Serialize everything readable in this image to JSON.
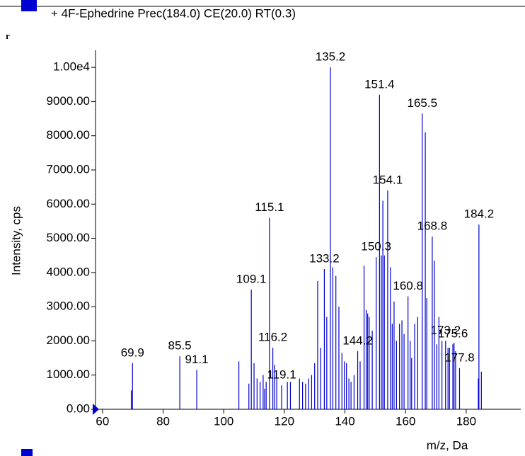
{
  "chart_data": {
    "type": "stick",
    "corner_text": "r",
    "series": [
      {
        "name": "+ 4F-Ephedrine Prec(184.0) CE(20.0) RT(0.3)",
        "color": "#0000d0",
        "x": [
          69.5,
          69.9,
          85.5,
          91.1,
          105.0,
          108.3,
          109.1,
          110.0,
          111.0,
          112.0,
          113.0,
          113.5,
          114.0,
          115.1,
          116.2,
          116.8,
          117.5,
          119.1,
          121.0,
          122.0,
          125.0,
          126.0,
          127.0,
          128.0,
          129.0,
          130.0,
          131.0,
          132.0,
          133.2,
          134.0,
          135.2,
          136.0,
          137.0,
          138.0,
          139.0,
          139.8,
          140.5,
          141.3,
          142.0,
          143.0,
          144.2,
          145.0,
          146.3,
          147.0,
          147.5,
          148.0,
          149.0,
          150.3,
          151.4,
          152.0,
          152.5,
          153.0,
          154.1,
          155.0,
          155.6,
          156.2,
          157.0,
          158.0,
          158.8,
          159.5,
          160.8,
          161.5,
          162.0,
          163.0,
          164.0,
          165.5,
          166.5,
          167.0,
          168.8,
          169.5,
          170.3,
          171.0,
          172.0,
          173.2,
          174.0,
          174.5,
          175.6,
          176.0,
          176.5,
          177.8,
          184.0,
          184.2,
          185.0
        ],
        "values": [
          550,
          1350,
          1550,
          1150,
          1400,
          750,
          3500,
          1350,
          900,
          800,
          1000,
          600,
          800,
          5600,
          1800,
          1300,
          900,
          700,
          800,
          800,
          900,
          800,
          750,
          900,
          1000,
          1350,
          3750,
          1800,
          4100,
          2700,
          10000,
          4150,
          3900,
          3000,
          1650,
          1400,
          1350,
          900,
          800,
          1000,
          1700,
          1400,
          4200,
          2900,
          2800,
          2700,
          2300,
          4450,
          9200,
          4500,
          6100,
          4500,
          6400,
          4150,
          2500,
          3150,
          2000,
          2500,
          2600,
          2200,
          3300,
          2000,
          1500,
          2500,
          2700,
          8650,
          8100,
          3250,
          5050,
          4350,
          1900,
          2700,
          2000,
          2000,
          1800,
          1800,
          1900,
          1950,
          1700,
          1200,
          900,
          5400,
          1100
        ]
      }
    ],
    "peak_labels": [
      69.9,
      85.5,
      91.1,
      109.1,
      115.1,
      116.2,
      119.1,
      133.2,
      135.2,
      144.2,
      150.3,
      151.4,
      154.1,
      160.8,
      165.5,
      168.8,
      173.2,
      175.6,
      177.8,
      184.2
    ],
    "xlabel": "m/z, Da",
    "ylabel": "Intensity, cps",
    "xlim": [
      57.7,
      198
    ],
    "ylim": [
      0,
      10500
    ],
    "xticks": [
      60,
      80,
      100,
      120,
      140,
      160,
      180
    ],
    "yticks": [
      {
        "value": 0,
        "label": "0.00"
      },
      {
        "value": 1000,
        "label": "1000.00"
      },
      {
        "value": 2000,
        "label": "2000.00"
      },
      {
        "value": 3000,
        "label": "3000.00"
      },
      {
        "value": 4000,
        "label": "4000.00"
      },
      {
        "value": 5000,
        "label": "5000.00"
      },
      {
        "value": 6000,
        "label": "6000.00"
      },
      {
        "value": 7000,
        "label": "7000.00"
      },
      {
        "value": 8000,
        "label": "8000.00"
      },
      {
        "value": 9000,
        "label": "9000.00"
      },
      {
        "value": 10000,
        "label": "1.00e4"
      }
    ]
  }
}
